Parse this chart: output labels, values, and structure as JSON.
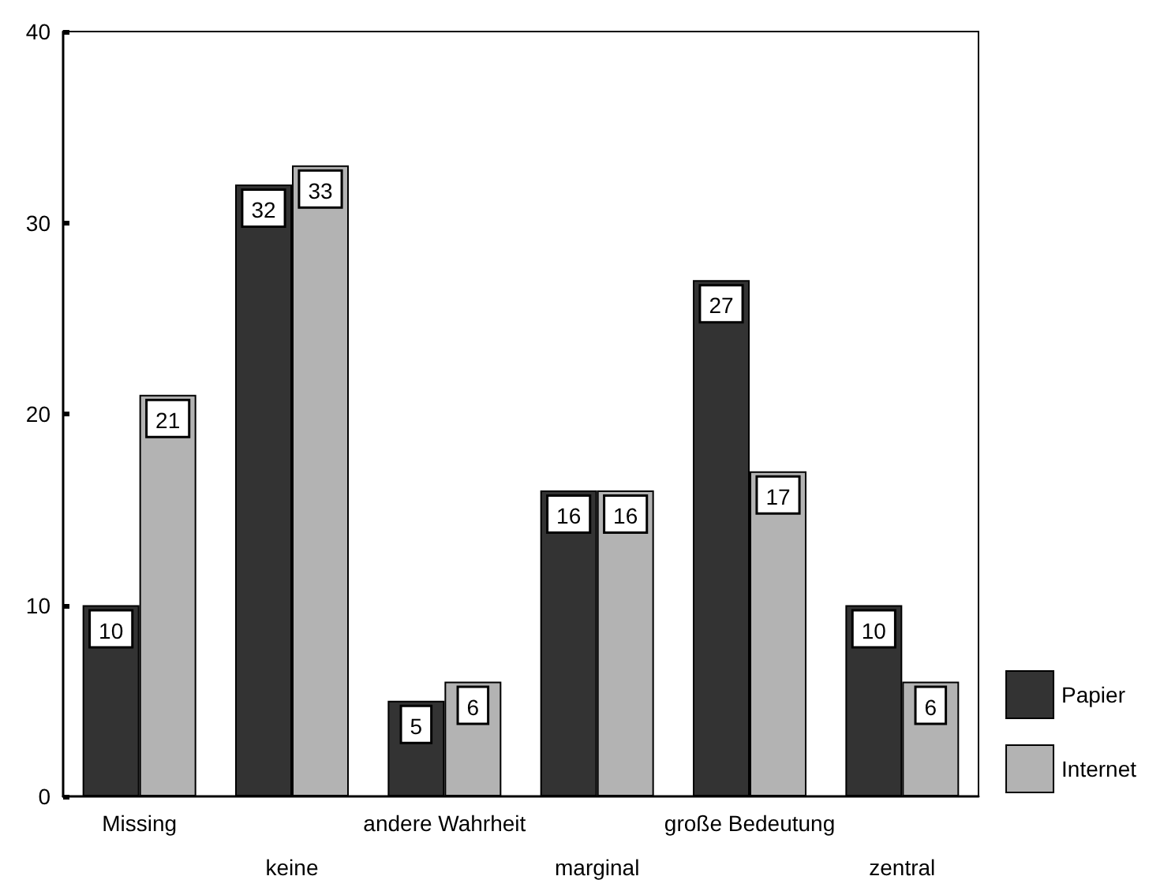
{
  "chart_data": {
    "type": "bar",
    "categories": [
      "Missing",
      "keine",
      "andere Wahrheit",
      "marginal",
      "große Bedeutung",
      "zentral"
    ],
    "series": [
      {
        "name": "Papier",
        "color": "#333333",
        "values": [
          10,
          32,
          5,
          16,
          27,
          10
        ]
      },
      {
        "name": "Internet",
        "color": "#b3b3b3",
        "values": [
          21,
          33,
          6,
          16,
          17,
          6
        ]
      }
    ],
    "ylim": [
      0,
      40
    ],
    "yticks": [
      0,
      10,
      20,
      30,
      40
    ],
    "grid": false,
    "legend": "right",
    "data_labels": true
  }
}
